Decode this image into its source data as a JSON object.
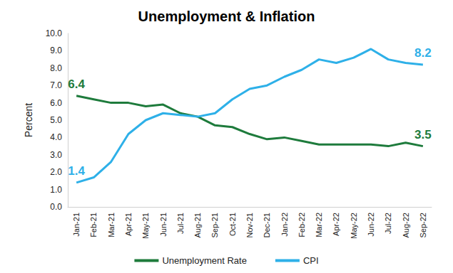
{
  "chart_data": {
    "type": "line",
    "title": "Unemployment & Inflation",
    "y_label": "Percent",
    "categories": [
      "Jan-21",
      "Feb-21",
      "Mar-21",
      "Apr-21",
      "May-21",
      "Jun-21",
      "Jul-21",
      "Aug-21",
      "Sep-21",
      "Oct-21",
      "Nov-21",
      "Dec-21",
      "Jan-22",
      "Feb-22",
      "Mar-22",
      "Apr-22",
      "May-22",
      "Jun-22",
      "Jul-22",
      "Aug-22",
      "Sep-22"
    ],
    "series": [
      {
        "name": "Unemployment Rate",
        "color": "#1e7b3c",
        "values": [
          6.4,
          6.2,
          6.0,
          6.0,
          5.8,
          5.9,
          5.4,
          5.2,
          4.7,
          4.6,
          4.2,
          3.9,
          4.0,
          3.8,
          3.6,
          3.6,
          3.6,
          3.6,
          3.5,
          3.7,
          3.5
        ],
        "value_labels": [
          "6.4",
          null,
          null,
          null,
          null,
          null,
          null,
          null,
          null,
          null,
          null,
          null,
          null,
          null,
          null,
          null,
          null,
          null,
          null,
          null,
          "3.5"
        ]
      },
      {
        "name": "CPI",
        "color": "#2eb0e8",
        "values": [
          1.4,
          1.7,
          2.6,
          4.2,
          5.0,
          5.4,
          5.3,
          5.2,
          5.4,
          6.2,
          6.8,
          7.0,
          7.5,
          7.9,
          8.5,
          8.3,
          8.6,
          9.1,
          8.5,
          8.3,
          8.2
        ],
        "value_labels": [
          "1.4",
          null,
          null,
          null,
          null,
          null,
          null,
          null,
          null,
          null,
          null,
          null,
          null,
          null,
          null,
          null,
          null,
          null,
          null,
          null,
          "8.2"
        ]
      }
    ],
    "ylim": [
      0,
      10
    ],
    "yticks": [
      {
        "value": 0,
        "label": "0.0"
      },
      {
        "value": 1,
        "label": "1.0"
      },
      {
        "value": 2,
        "label": "2.0"
      },
      {
        "value": 3,
        "label": "3.0"
      },
      {
        "value": 4,
        "label": "4.0"
      },
      {
        "value": 5,
        "label": "5.0"
      },
      {
        "value": 6,
        "label": "6.0"
      },
      {
        "value": 7,
        "label": "7.0"
      },
      {
        "value": 8,
        "label": "8.0"
      },
      {
        "value": 9,
        "label": "9.0"
      },
      {
        "value": 10,
        "label": "10.0"
      }
    ],
    "grid": false,
    "legend": "bottom"
  }
}
